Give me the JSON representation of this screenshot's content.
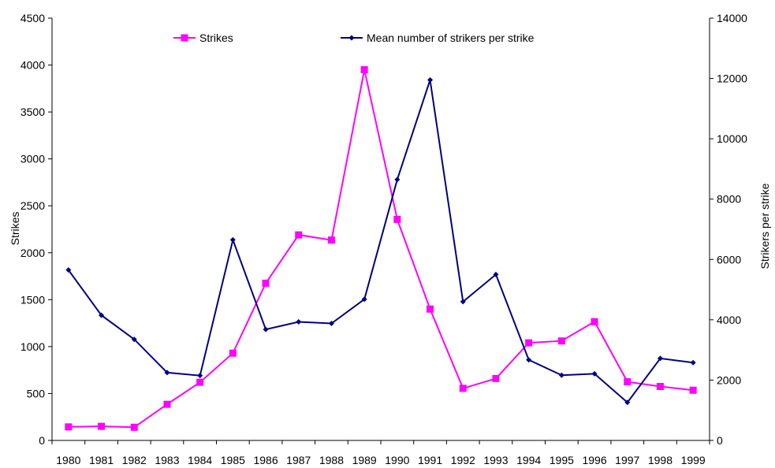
{
  "chart_data": {
    "type": "line",
    "title": "",
    "xlabel": "",
    "ylabel": "Strikes",
    "y2label": "Strikers per strike",
    "categories": [
      "1980",
      "1981",
      "1982",
      "1983",
      "1984",
      "1985",
      "1986",
      "1987",
      "1988",
      "1989",
      "1990",
      "1991",
      "1992",
      "1993",
      "1994",
      "1995",
      "1996",
      "1997",
      "1998",
      "1999"
    ],
    "ylim": [
      0,
      4500
    ],
    "y2lim": [
      0,
      14000
    ],
    "yticks": [
      "0",
      "500",
      "1000",
      "1500",
      "2000",
      "2500",
      "3000",
      "3500",
      "4000",
      "4500"
    ],
    "y2ticks": [
      "0",
      "2000",
      "4000",
      "6000",
      "8000",
      "10000",
      "12000",
      "14000"
    ],
    "grid": false,
    "legend_position": "top",
    "series": [
      {
        "name": "Strikes",
        "axis": "left",
        "color": "#ff00ff",
        "marker": "square",
        "values": [
          144,
          150,
          140,
          385,
          620,
          930,
          1675,
          2190,
          2135,
          3950,
          2355,
          1400,
          555,
          660,
          1040,
          1060,
          1265,
          625,
          575,
          535
        ]
      },
      {
        "name": "Mean number of strikers per strike",
        "axis": "right",
        "color": "#000080",
        "marker": "diamond",
        "values": [
          5650,
          4150,
          3350,
          2250,
          2150,
          6650,
          3680,
          3930,
          3880,
          4680,
          8650,
          11950,
          4600,
          5500,
          2670,
          2160,
          2210,
          1260,
          2720,
          2580
        ]
      }
    ]
  }
}
